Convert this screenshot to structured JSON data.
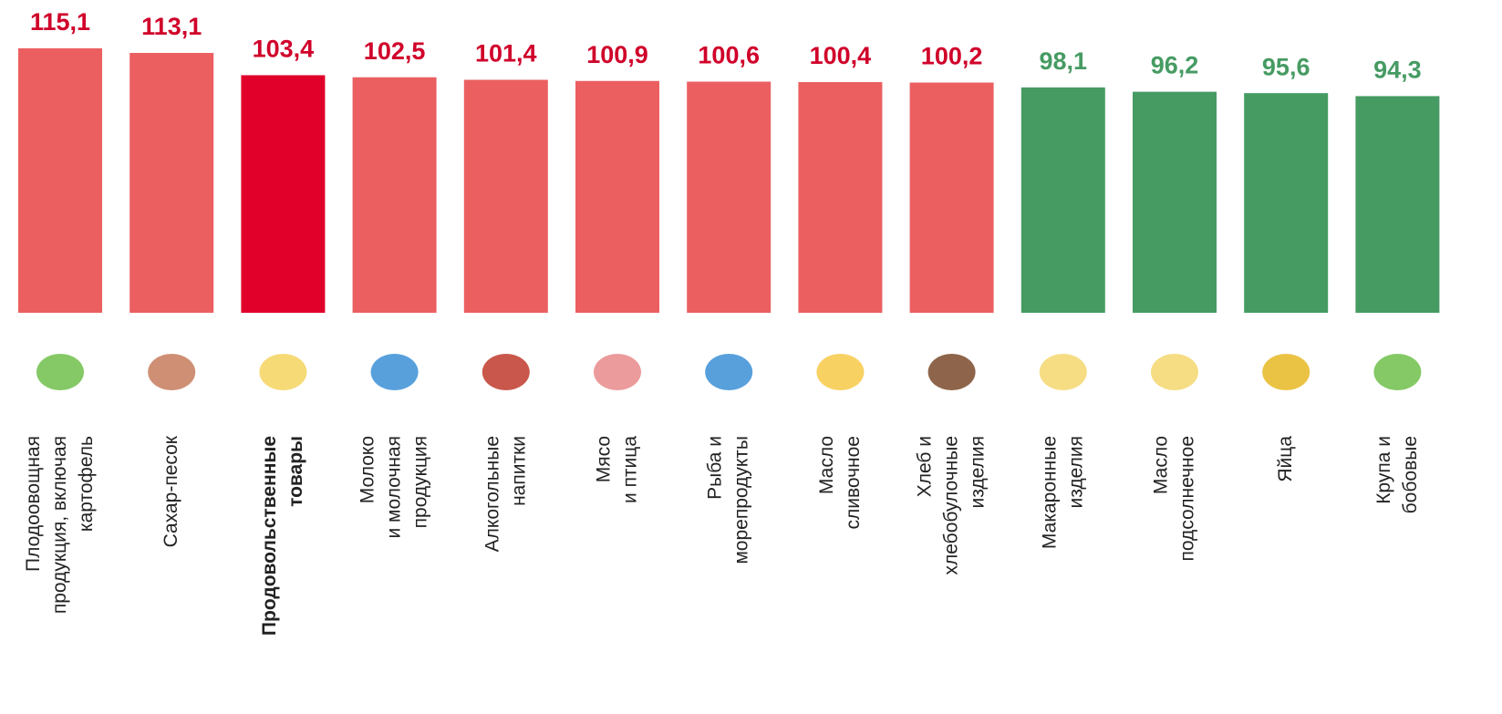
{
  "chart_data": {
    "type": "bar",
    "categories": [
      "Плодоовощная\nпродукция, включая\nкартофель",
      "Сахар-песок",
      "Продовольственные\nтовары",
      "Молоко\nи молочная\nпродукция",
      "Алкогольные\nнапитки",
      "Мясо\nи птица",
      "Рыба и\nморепродукты",
      "Масло\nсливочное",
      "Хлеб и\nхлебобулочные\nизделия",
      "Макаронные\nизделия",
      "Масло\nподсолнечное",
      "Яйца",
      "Крупа и\nбобовые"
    ],
    "values": [
      115.1,
      113.1,
      103.4,
      102.5,
      101.4,
      100.9,
      100.6,
      100.4,
      100.2,
      98.1,
      96.2,
      95.6,
      94.3
    ],
    "value_labels": [
      "115,1",
      "113,1",
      "103,4",
      "102,5",
      "101,4",
      "100,9",
      "100,6",
      "100,4",
      "100,2",
      "98,1",
      "96,2",
      "95,6",
      "94,3"
    ],
    "colors": [
      "#eb5f61",
      "#eb5f61",
      "#e0002a",
      "#eb5f61",
      "#eb5f61",
      "#eb5f61",
      "#eb5f61",
      "#eb5f61",
      "#eb5f61",
      "#469b63",
      "#469b63",
      "#469b63",
      "#469b63"
    ],
    "label_colors": [
      "#d0002a",
      "#d0002a",
      "#d0002a",
      "#d0002a",
      "#d0002a",
      "#d0002a",
      "#d0002a",
      "#d0002a",
      "#d0002a",
      "#469b63",
      "#469b63",
      "#469b63",
      "#469b63"
    ],
    "bold_category": 2
  }
}
